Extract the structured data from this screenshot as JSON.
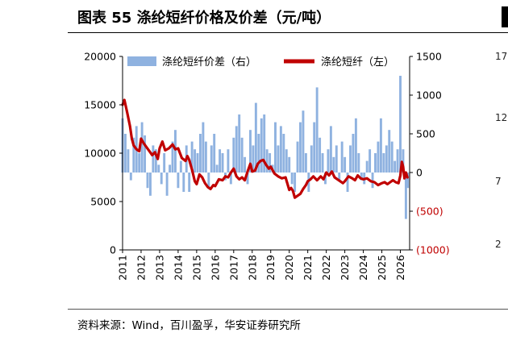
{
  "page": {
    "title": "图表 55 涤纶短纤价格及价差（元/吨）",
    "source": "资料来源：Wind，百川盈孚，华安证券研究所"
  },
  "neighbor_chart_ticks": [
    "17",
    "12",
    "7",
    "2"
  ],
  "chart_data": {
    "type": "bar+line",
    "title": "",
    "legend": {
      "placement": "top",
      "entries": [
        "涤纶短纤价差（右）",
        "涤纶短纤（左）"
      ]
    },
    "x_tick_labels": [
      "2011",
      "2012",
      "2013",
      "2014",
      "2015",
      "2016",
      "2017",
      "2018",
      "2019",
      "2020",
      "2021",
      "2022",
      "2023",
      "2024",
      "2025",
      "2026"
    ],
    "x_range": [
      2011.0,
      2026.5
    ],
    "left_axis": {
      "range": [
        0,
        20000
      ],
      "ticks": [
        0,
        5000,
        10000,
        15000,
        20000
      ],
      "tick_labels": [
        "0",
        "5000",
        "10000",
        "15000",
        "20000"
      ]
    },
    "right_axis": {
      "range": [
        -1000,
        1500
      ],
      "ticks": [
        -1000,
        -500,
        0,
        500,
        1000,
        1500
      ],
      "tick_labels": [
        "(1000)",
        "(500)",
        "0",
        "500",
        "1000",
        "1500"
      ],
      "negative_color": "#c00000"
    },
    "series": [
      {
        "name": "涤纶短纤（左）",
        "type": "line",
        "axis": "left",
        "color": "#c00000",
        "x": [
          2011.0,
          2011.1,
          2011.25,
          2011.4,
          2011.5,
          2011.6,
          2011.75,
          2011.9,
          2012.0,
          2012.15,
          2012.3,
          2012.45,
          2012.6,
          2012.75,
          2012.9,
          2013.0,
          2013.15,
          2013.3,
          2013.5,
          2013.7,
          2013.85,
          2014.0,
          2014.2,
          2014.4,
          2014.5,
          2014.6,
          2014.75,
          2014.9,
          2015.0,
          2015.15,
          2015.3,
          2015.45,
          2015.6,
          2015.75,
          2015.9,
          2016.0,
          2016.2,
          2016.4,
          2016.55,
          2016.7,
          2016.85,
          2017.0,
          2017.15,
          2017.3,
          2017.45,
          2017.6,
          2017.75,
          2017.9,
          2018.0,
          2018.15,
          2018.3,
          2018.45,
          2018.6,
          2018.75,
          2018.9,
          2019.0,
          2019.2,
          2019.4,
          2019.6,
          2019.8,
          2020.0,
          2020.1,
          2020.2,
          2020.3,
          2020.45,
          2020.6,
          2020.75,
          2020.9,
          2021.0,
          2021.15,
          2021.3,
          2021.5,
          2021.7,
          2021.85,
          2022.0,
          2022.15,
          2022.3,
          2022.45,
          2022.6,
          2022.75,
          2022.9,
          2023.0,
          2023.2,
          2023.4,
          2023.55,
          2023.7,
          2023.85,
          2024.0,
          2024.2,
          2024.4,
          2024.6,
          2024.8,
          2025.0,
          2025.15,
          2025.3,
          2025.45,
          2025.6,
          2025.75,
          2025.9,
          2026.0,
          2026.08,
          2026.15,
          2026.22,
          2026.3,
          2026.38
        ],
        "values": [
          15000,
          15500,
          14200,
          12800,
          11500,
          10800,
          10400,
          10200,
          11500,
          11000,
          10600,
          10200,
          9800,
          10100,
          9400,
          10500,
          11200,
          10300,
          10500,
          10900,
          10400,
          10500,
          9500,
          9200,
          9700,
          9300,
          8300,
          7100,
          6800,
          7800,
          7500,
          6900,
          6500,
          6300,
          6700,
          6600,
          7300,
          7200,
          7600,
          7500,
          8000,
          8400,
          7600,
          7300,
          7500,
          7200,
          8100,
          8900,
          8100,
          8200,
          8900,
          9200,
          9300,
          8800,
          8400,
          8600,
          7900,
          7600,
          7400,
          7500,
          6200,
          6400,
          6100,
          5400,
          5600,
          5800,
          6300,
          6700,
          7100,
          7300,
          7600,
          7200,
          7600,
          7300,
          8000,
          7700,
          8100,
          7500,
          7300,
          7100,
          6900,
          7100,
          7600,
          7400,
          7200,
          7700,
          7400,
          7300,
          7400,
          7100,
          7000,
          6700,
          6900,
          7000,
          6800,
          7000,
          7200,
          7000,
          6900,
          7700,
          9100,
          8600,
          7400,
          8000,
          7500
        ]
      },
      {
        "name": "涤纶短纤价差（右）",
        "type": "bar",
        "axis": "right",
        "color": "#8fb2e0",
        "x": [
          2011.0,
          2011.15,
          2011.3,
          2011.45,
          2011.6,
          2011.75,
          2011.9,
          2012.05,
          2012.2,
          2012.35,
          2012.5,
          2012.65,
          2012.8,
          2012.95,
          2013.1,
          2013.25,
          2013.4,
          2013.55,
          2013.7,
          2013.85,
          2014.0,
          2014.15,
          2014.3,
          2014.45,
          2014.6,
          2014.75,
          2014.9,
          2015.05,
          2015.2,
          2015.35,
          2015.5,
          2015.65,
          2015.8,
          2015.95,
          2016.1,
          2016.25,
          2016.4,
          2016.55,
          2016.7,
          2016.85,
          2017.0,
          2017.15,
          2017.3,
          2017.45,
          2017.6,
          2017.75,
          2017.9,
          2018.05,
          2018.2,
          2018.35,
          2018.5,
          2018.65,
          2018.8,
          2018.95,
          2019.1,
          2019.25,
          2019.4,
          2019.55,
          2019.7,
          2019.85,
          2020.0,
          2020.15,
          2020.3,
          2020.45,
          2020.6,
          2020.75,
          2020.9,
          2021.05,
          2021.2,
          2021.35,
          2021.5,
          2021.65,
          2021.8,
          2021.95,
          2022.1,
          2022.25,
          2022.4,
          2022.55,
          2022.7,
          2022.85,
          2023.0,
          2023.15,
          2023.3,
          2023.45,
          2023.6,
          2023.75,
          2023.9,
          2024.05,
          2024.2,
          2024.35,
          2024.5,
          2024.65,
          2024.8,
          2024.95,
          2025.1,
          2025.25,
          2025.4,
          2025.55,
          2025.7,
          2025.85,
          2026.0,
          2026.15,
          2026.3,
          2026.4
        ],
        "values": [
          700,
          500,
          300,
          -100,
          450,
          600,
          250,
          650,
          480,
          -200,
          -300,
          350,
          300,
          100,
          -150,
          250,
          -300,
          100,
          400,
          550,
          -200,
          150,
          -250,
          350,
          -250,
          400,
          300,
          250,
          500,
          650,
          400,
          -200,
          350,
          500,
          100,
          300,
          250,
          -100,
          300,
          -150,
          450,
          600,
          750,
          450,
          200,
          -150,
          550,
          350,
          900,
          500,
          700,
          750,
          300,
          250,
          100,
          650,
          350,
          600,
          500,
          300,
          200,
          -150,
          -250,
          400,
          650,
          800,
          250,
          -250,
          350,
          650,
          1100,
          450,
          250,
          -150,
          300,
          600,
          200,
          350,
          -100,
          400,
          200,
          -250,
          350,
          500,
          700,
          250,
          -100,
          -150,
          150,
          300,
          -200,
          250,
          400,
          700,
          250,
          350,
          550,
          400,
          150,
          300,
          1250,
          300,
          -600,
          -200
        ]
      }
    ]
  }
}
